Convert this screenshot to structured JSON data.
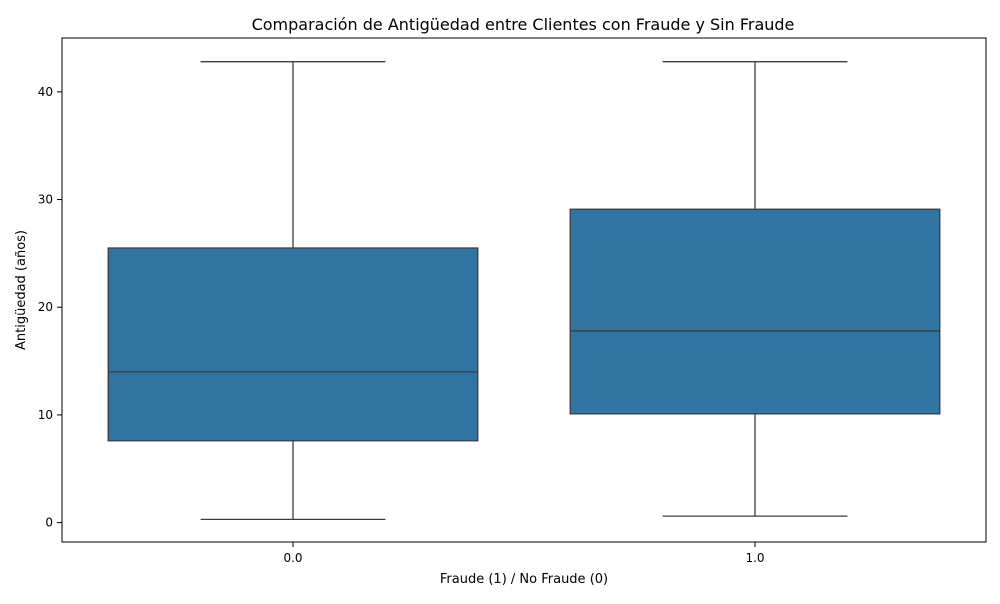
{
  "chart_data": {
    "type": "box",
    "title": "Comparación de Antigüedad entre Clientes con Fraude y Sin Fraude",
    "xlabel": "Fraude (1) / No Fraude (0)",
    "ylabel": "Antigüedad (años)",
    "categories": [
      "0.0",
      "1.0"
    ],
    "boxes": [
      {
        "category": "0.0",
        "whisker_low": 0.3,
        "q1": 7.6,
        "median": 14.0,
        "q3": 25.5,
        "whisker_high": 42.8
      },
      {
        "category": "1.0",
        "whisker_low": 0.6,
        "q1": 10.1,
        "median": 17.8,
        "q3": 29.1,
        "whisker_high": 42.8
      }
    ],
    "yticks": [
      0,
      10,
      20,
      30,
      40
    ],
    "ylim": [
      -1.8,
      45.0
    ],
    "grid": false,
    "box_color": "#3274a1",
    "line_color": "#3d3d3d"
  }
}
